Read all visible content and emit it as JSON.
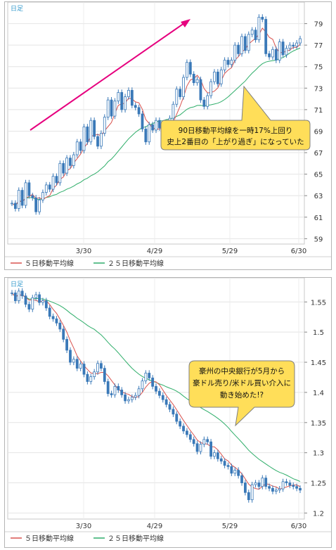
{
  "chart_data": [
    {
      "type": "candlestick",
      "period_label": "日足",
      "x_ticks": [
        "3/30",
        "4/29",
        "5/29",
        "6/30"
      ],
      "ylim": [
        58.5,
        81
      ],
      "yticks": [
        59,
        61,
        63,
        65,
        67,
        69,
        71,
        73,
        75,
        77,
        79
      ],
      "legend": [
        "５日移動平均線",
        "２５日移動平均線"
      ],
      "ma_colors": [
        "#d9534f",
        "#2fae6a"
      ],
      "callout_lines": [
        "90日移動平均線を一時17%上回り",
        "史上2番目の「上がり過ぎ」になっていた"
      ],
      "closes": [
        62.3,
        61.8,
        63.5,
        62.1,
        64.2,
        63.0,
        62.8,
        61.5,
        62.6,
        63.3,
        64.0,
        63.6,
        64.8,
        64.2,
        66.0,
        65.1,
        66.5,
        65.8,
        66.8,
        68.0,
        67.2,
        69.4,
        68.0,
        70.0,
        68.5,
        67.6,
        68.8,
        70.3,
        71.9,
        70.4,
        71.8,
        72.6,
        71.0,
        72.2,
        72.8,
        71.4,
        71.2,
        70.6,
        69.2,
        68.0,
        69.6,
        69.1,
        70.0,
        69.3,
        68.4,
        69.8,
        70.2,
        71.5,
        72.9,
        72.2,
        74.0,
        75.4,
        74.3,
        73.5,
        73.8,
        71.9,
        71.3,
        72.3,
        73.6,
        74.5,
        73.4,
        74.7,
        75.6,
        75.2,
        75.6,
        77.0,
        76.2,
        77.8,
        76.5,
        78.0,
        78.4,
        77.5,
        79.6,
        79.4,
        76.2,
        75.9,
        76.6,
        75.6,
        77.3,
        76.1,
        76.7,
        77.0,
        76.9,
        77.2,
        77.6
      ]
    },
    {
      "type": "candlestick",
      "period_label": "日足",
      "x_ticks": [
        "3/30",
        "4/29",
        "5/29",
        "6/30"
      ],
      "ylim": [
        1.19,
        1.59
      ],
      "yticks": [
        "1.2",
        "1.25",
        "1.3",
        "1.35",
        "1.4",
        "1.45",
        "1.5",
        "1.55"
      ],
      "legend": [
        "５日移動平均線",
        "２５日移動平均線"
      ],
      "ma_colors": [
        "#d9534f",
        "#2fae6a"
      ],
      "callout_lines": [
        "豪州の中央銀行が5月から",
        "豪ドル売り/米ドル買い介入に",
        "動き始めた!?"
      ],
      "closes": [
        1.565,
        1.552,
        1.568,
        1.56,
        1.546,
        1.538,
        1.557,
        1.562,
        1.549,
        1.552,
        1.54,
        1.526,
        1.522,
        1.515,
        1.505,
        1.488,
        1.47,
        1.45,
        1.455,
        1.44,
        1.447,
        1.43,
        1.418,
        1.426,
        1.434,
        1.448,
        1.44,
        1.418,
        1.398,
        1.396,
        1.41,
        1.404,
        1.396,
        1.386,
        1.388,
        1.392,
        1.395,
        1.406,
        1.419,
        1.432,
        1.424,
        1.41,
        1.402,
        1.395,
        1.388,
        1.38,
        1.372,
        1.364,
        1.352,
        1.344,
        1.336,
        1.33,
        1.322,
        1.315,
        1.302,
        1.314,
        1.322,
        1.318,
        1.294,
        1.3,
        1.29,
        1.286,
        1.279,
        1.277,
        1.266,
        1.271,
        1.262,
        1.25,
        1.234,
        1.222,
        1.247,
        1.25,
        1.244,
        1.258,
        1.244,
        1.241,
        1.236,
        1.238,
        1.24,
        1.252,
        1.25,
        1.246,
        1.244,
        1.241,
        1.238
      ]
    }
  ]
}
